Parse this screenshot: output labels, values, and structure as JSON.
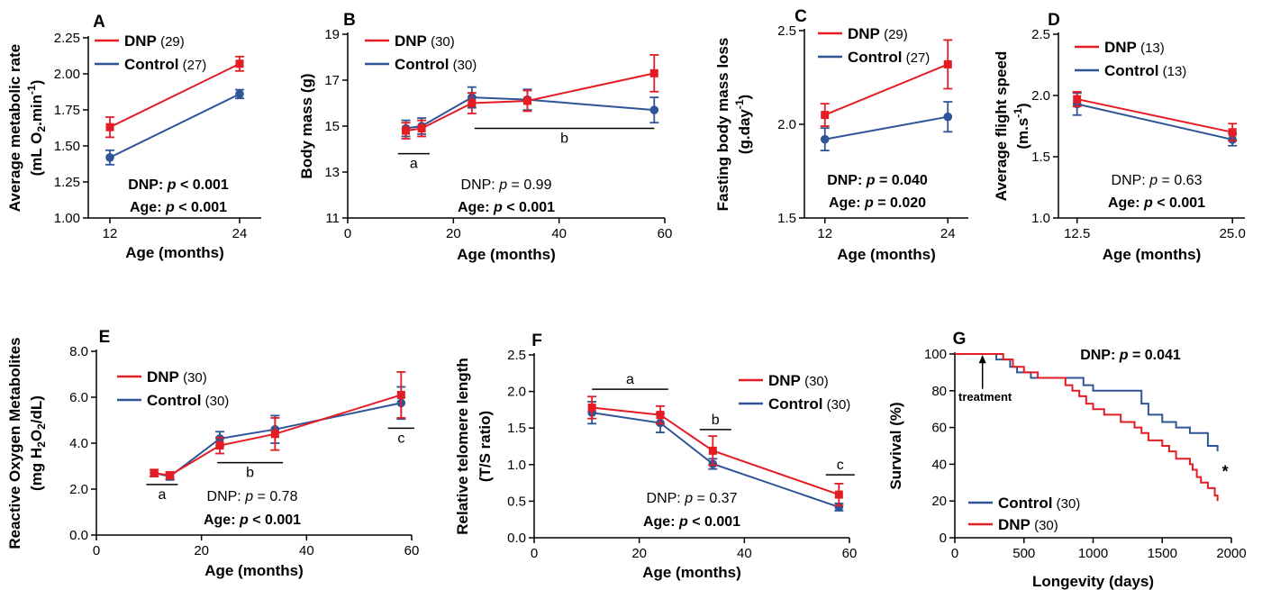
{
  "colors": {
    "dnp": "#e41c23",
    "control": "#2e5597"
  },
  "chart_data": [
    {
      "panel": "A",
      "type": "line",
      "xlabel": "Age (months)",
      "ylabel": "Average metabolic rate",
      "ylabel2": "(mL O2.min-1)",
      "xlim": [
        10,
        26
      ],
      "ylim": [
        1.0,
        2.25
      ],
      "xticks": [
        12,
        24
      ],
      "xtick_labels": [
        "12",
        "24"
      ],
      "yticks": [
        1.0,
        1.25,
        1.5,
        1.75,
        2.0,
        2.25
      ],
      "ytick_labels": [
        "1.00",
        "1.25",
        "1.50",
        "1.75",
        "2.00",
        "2.25"
      ],
      "series": [
        {
          "name": "DNP",
          "n": "(29)",
          "x": [
            12,
            24
          ],
          "y": [
            1.63,
            2.07
          ],
          "err": [
            0.07,
            0.05
          ]
        },
        {
          "name": "Control",
          "n": "(27)",
          "x": [
            12,
            24
          ],
          "y": [
            1.42,
            1.86
          ],
          "err": [
            0.05,
            0.03
          ]
        }
      ],
      "stats": [
        "DNP: p < 0.001",
        "Age: p < 0.001"
      ]
    },
    {
      "panel": "B",
      "type": "line",
      "xlabel": "Age (months)",
      "ylabel": "Body mass (g)",
      "ylabel2": "",
      "xlim": [
        0,
        60
      ],
      "ylim": [
        11,
        19
      ],
      "xticks": [
        0,
        20,
        40,
        60
      ],
      "xtick_labels": [
        "0",
        "20",
        "40",
        "60"
      ],
      "yticks": [
        11,
        13,
        15,
        17,
        19
      ],
      "ytick_labels": [
        "11",
        "13",
        "15",
        "17",
        "19"
      ],
      "series": [
        {
          "name": "DNP",
          "n": "(30)",
          "x": [
            11,
            14,
            23.5,
            34,
            58
          ],
          "y": [
            14.8,
            14.9,
            16.0,
            16.1,
            17.3
          ],
          "err": [
            0.35,
            0.35,
            0.45,
            0.45,
            0.8
          ]
        },
        {
          "name": "Control",
          "n": "(30)",
          "x": [
            11,
            14,
            23.5,
            34,
            58
          ],
          "y": [
            14.9,
            15.0,
            16.25,
            16.15,
            15.7
          ],
          "err": [
            0.35,
            0.35,
            0.45,
            0.45,
            0.55
          ]
        }
      ],
      "groups": [
        {
          "label": "a",
          "x1": 9.5,
          "x2": 15.5,
          "y": 13.8,
          "below": true
        },
        {
          "label": "b",
          "x1": 24,
          "x2": 58,
          "y": 14.9,
          "below": true
        }
      ],
      "stats": [
        "DNP: p = 0.99",
        "Age: p < 0.001"
      ]
    },
    {
      "panel": "C",
      "type": "line",
      "xlabel": "Age (months)",
      "ylabel": "Fasting body mass loss",
      "ylabel2": "(g.day-1)",
      "xlim": [
        10,
        26
      ],
      "ylim": [
        1.5,
        2.5
      ],
      "xticks": [
        12,
        24
      ],
      "xtick_labels": [
        "12",
        "24"
      ],
      "yticks": [
        1.5,
        2.0,
        2.5
      ],
      "ytick_labels": [
        "1.5",
        "2.0",
        "2.5"
      ],
      "series": [
        {
          "name": "DNP",
          "n": "(29)",
          "x": [
            12,
            24
          ],
          "y": [
            2.05,
            2.32
          ],
          "err": [
            0.06,
            0.13
          ]
        },
        {
          "name": "Control",
          "n": "(27)",
          "x": [
            12,
            24
          ],
          "y": [
            1.92,
            2.04
          ],
          "err": [
            0.06,
            0.08
          ]
        }
      ],
      "stats": [
        "DNP: p = 0.040",
        "Age: p = 0.020"
      ]
    },
    {
      "panel": "D",
      "type": "line",
      "xlabel": "Age (months)",
      "ylabel": "Average flight speed",
      "ylabel2": "(m.s-1)",
      "xlim": [
        11,
        26
      ],
      "ylim": [
        1.0,
        2.5
      ],
      "xticks": [
        12.5,
        25.0
      ],
      "xtick_labels": [
        "12.5",
        "25.0"
      ],
      "yticks": [
        1.0,
        1.5,
        2.0,
        2.5
      ],
      "ytick_labels": [
        "1.0",
        "1.5",
        "2.0",
        "2.5"
      ],
      "series": [
        {
          "name": "DNP",
          "n": "(13)",
          "x": [
            12.5,
            25.0
          ],
          "y": [
            1.97,
            1.7
          ],
          "err": [
            0.06,
            0.07
          ]
        },
        {
          "name": "Control",
          "n": "(13)",
          "x": [
            12.5,
            25.0
          ],
          "y": [
            1.93,
            1.64
          ],
          "err": [
            0.09,
            0.05
          ]
        }
      ],
      "stats": [
        "DNP: p = 0.63",
        "Age: p < 0.001"
      ]
    },
    {
      "panel": "E",
      "type": "line",
      "xlabel": "Age (months)",
      "ylabel": "Reactive Oxygen Metabolites",
      "ylabel2": "(mg H2O2/dL)",
      "xlim": [
        0,
        60
      ],
      "ylim": [
        0,
        8
      ],
      "xticks": [
        0,
        20,
        40,
        60
      ],
      "xtick_labels": [
        "0",
        "20",
        "40",
        "60"
      ],
      "yticks": [
        0,
        2,
        4,
        6,
        8
      ],
      "ytick_labels": [
        "0.0",
        "2.0",
        "4.0",
        "6.0",
        "8.0"
      ],
      "series": [
        {
          "name": "DNP",
          "n": "(30)",
          "x": [
            11,
            14,
            23.5,
            34,
            58
          ],
          "y": [
            2.7,
            2.6,
            3.9,
            4.4,
            6.1
          ],
          "err": [
            0.15,
            0.15,
            0.35,
            0.7,
            1.0
          ]
        },
        {
          "name": "Control",
          "n": "(30)",
          "x": [
            11,
            14,
            23.5,
            34,
            58
          ],
          "y": [
            2.7,
            2.55,
            4.2,
            4.6,
            5.75
          ],
          "err": [
            0.15,
            0.15,
            0.3,
            0.6,
            0.7
          ]
        }
      ],
      "groups": [
        {
          "label": "a",
          "x1": 9.5,
          "x2": 15.5,
          "y": 2.2,
          "below": true
        },
        {
          "label": "b",
          "x1": 23,
          "x2": 35.5,
          "y": 3.15,
          "below": true
        },
        {
          "label": "c",
          "x1": 55.5,
          "x2": 60.5,
          "y": 4.65,
          "below": true
        }
      ],
      "stats": [
        "DNP: p = 0.78",
        "Age: p < 0.001"
      ]
    },
    {
      "panel": "F",
      "type": "line",
      "xlabel": "Age (months)",
      "ylabel": "Relative telomere length",
      "ylabel2": "(T/S ratio)",
      "xlim": [
        0,
        60
      ],
      "ylim": [
        0,
        2.5
      ],
      "xticks": [
        0,
        20,
        40,
        60
      ],
      "xtick_labels": [
        "0",
        "20",
        "40",
        "60"
      ],
      "yticks": [
        0,
        0.5,
        1.0,
        1.5,
        2.0,
        2.5
      ],
      "ytick_labels": [
        "0.0",
        "0.5",
        "1.0",
        "1.5",
        "2.0",
        "2.5"
      ],
      "series": [
        {
          "name": "DNP",
          "n": "(30)",
          "x": [
            11,
            24,
            34,
            58
          ],
          "y": [
            1.78,
            1.68,
            1.19,
            0.59
          ],
          "err": [
            0.15,
            0.12,
            0.2,
            0.15
          ]
        },
        {
          "name": "Control",
          "n": "(30)",
          "x": [
            11,
            24,
            34,
            58
          ],
          "y": [
            1.71,
            1.57,
            1.01,
            0.42
          ],
          "err": [
            0.15,
            0.13,
            0.07,
            0.05
          ]
        }
      ],
      "groups": [
        {
          "label": "a",
          "x1": 11,
          "x2": 25.5,
          "y": 2.03,
          "below": false
        },
        {
          "label": "b",
          "x1": 31.5,
          "x2": 37.5,
          "y": 1.48,
          "below": false
        },
        {
          "label": "c",
          "x1": 55.5,
          "x2": 61,
          "y": 0.86,
          "below": false
        }
      ],
      "stats": [
        "DNP: p = 0.37",
        "Age: p < 0.001"
      ]
    },
    {
      "panel": "G",
      "type": "line",
      "step": true,
      "xlabel": "Longevity (days)",
      "ylabel": "Survival (%)",
      "ylabel2": "",
      "xlim": [
        0,
        2000
      ],
      "ylim": [
        0,
        100
      ],
      "xticks": [
        0,
        500,
        1000,
        1500,
        2000
      ],
      "xtick_labels": [
        "0",
        "500",
        "1000",
        "1500",
        "2000"
      ],
      "yticks": [
        0,
        20,
        40,
        60,
        80,
        100
      ],
      "ytick_labels": [
        "0",
        "20",
        "40",
        "60",
        "80",
        "100"
      ],
      "series": [
        {
          "name": "Control",
          "n": "(30)",
          "x": [
            0,
            280,
            300,
            400,
            450,
            550,
            700,
            930,
            1000,
            1350,
            1400,
            1500,
            1600,
            1700,
            1830,
            1900
          ],
          "y": [
            100,
            100,
            97,
            93,
            90,
            87,
            87,
            83,
            80,
            73,
            67,
            63,
            60,
            57,
            50,
            47
          ]
        },
        {
          "name": "DNP",
          "n": "(30)",
          "x": [
            0,
            280,
            350,
            420,
            500,
            600,
            700,
            800,
            850,
            900,
            950,
            1000,
            1080,
            1150,
            1200,
            1300,
            1350,
            1400,
            1500,
            1550,
            1600,
            1700,
            1720,
            1750,
            1780,
            1830,
            1880,
            1900
          ],
          "y": [
            100,
            100,
            97,
            93,
            90,
            87,
            87,
            83,
            80,
            77,
            73,
            70,
            67,
            67,
            63,
            60,
            57,
            53,
            50,
            47,
            43,
            40,
            37,
            33,
            30,
            27,
            23,
            20
          ]
        }
      ],
      "annotations": [
        "treatment",
        "*"
      ],
      "stats": [
        "DNP: p = 0.041"
      ]
    }
  ]
}
